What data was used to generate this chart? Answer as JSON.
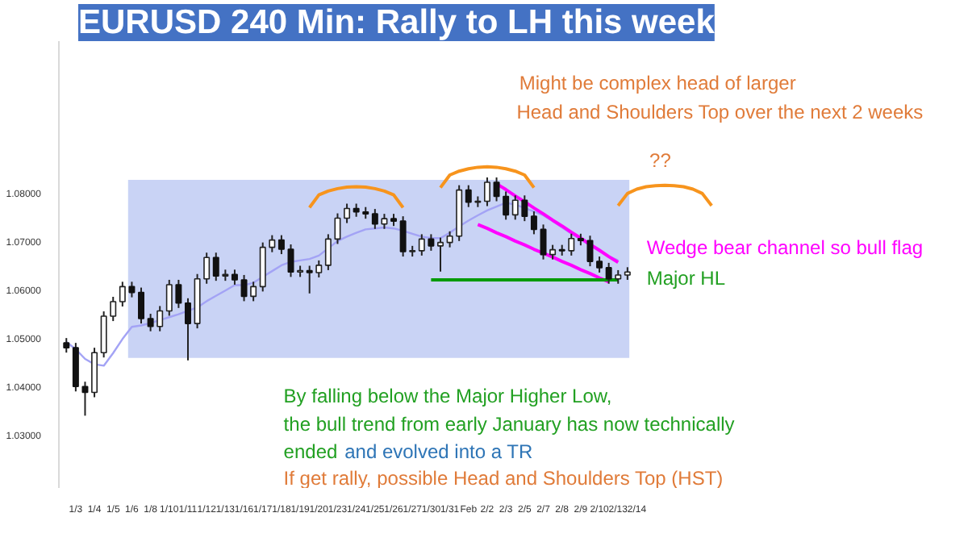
{
  "chart_data": {
    "type": "candlestick",
    "title": "EURUSD 240 Min: Rally to LH this week",
    "categories": [
      null,
      "1/3",
      null,
      "1/4",
      null,
      "1/5",
      null,
      "1/6",
      null,
      "1/8",
      null,
      "1/10",
      null,
      "1/11",
      null,
      "1/12",
      null,
      "1/13",
      null,
      "1/16",
      null,
      "1/17",
      null,
      "1/18",
      null,
      "1/19",
      null,
      "1/20",
      null,
      "1/23",
      null,
      "1/24",
      null,
      "1/25",
      null,
      "1/26",
      null,
      "1/27",
      null,
      "1/30",
      null,
      "1/31",
      null,
      "Feb",
      null,
      "2/2",
      null,
      "2/3",
      null,
      "2/5",
      null,
      "2/7",
      null,
      "2/8",
      null,
      "2/9",
      null,
      "2/10",
      null,
      "2/13",
      null,
      "2/14",
      null,
      null,
      null,
      null,
      null,
      null,
      null,
      null
    ],
    "ohlc": [
      [
        1.049,
        1.05,
        1.047,
        1.048
      ],
      [
        1.048,
        1.049,
        1.039,
        1.04
      ],
      [
        1.04,
        1.041,
        1.034,
        1.0388
      ],
      [
        1.0388,
        1.048,
        1.0378,
        1.047
      ],
      [
        1.047,
        1.0555,
        1.046,
        1.0545
      ],
      [
        1.0545,
        1.0585,
        1.0535,
        1.0575
      ],
      [
        1.0575,
        1.0616,
        1.0565,
        1.0606
      ],
      [
        1.0606,
        1.0616,
        1.0584,
        1.0594
      ],
      [
        1.0594,
        1.0604,
        1.053,
        1.054
      ],
      [
        1.054,
        1.055,
        1.0514,
        1.0524
      ],
      [
        1.0524,
        1.0566,
        1.0514,
        1.0556
      ],
      [
        1.0556,
        1.062,
        1.0546,
        1.061
      ],
      [
        1.061,
        1.062,
        1.0562,
        1.0572
      ],
      [
        1.0572,
        1.0582,
        1.0454,
        1.053
      ],
      [
        1.053,
        1.0632,
        1.052,
        1.0622
      ],
      [
        1.0622,
        1.0676,
        1.0612,
        1.0666
      ],
      [
        1.0666,
        1.0676,
        1.0618,
        1.0628
      ],
      [
        1.0628,
        1.0641,
        1.0618,
        1.0631
      ],
      [
        1.0631,
        1.0641,
        1.061,
        1.062
      ],
      [
        1.062,
        1.063,
        1.0576,
        1.0586
      ],
      [
        1.0586,
        1.0616,
        1.0576,
        1.0606
      ],
      [
        1.0606,
        1.0697,
        1.0596,
        1.0687
      ],
      [
        1.0687,
        1.0712,
        1.0677,
        1.0702
      ],
      [
        1.0702,
        1.0712,
        1.0673,
        1.0683
      ],
      [
        1.0683,
        1.0693,
        1.0626,
        1.0636
      ],
      [
        1.0636,
        1.0649,
        1.0626,
        1.0639
      ],
      [
        1.0639,
        1.0649,
        1.0592,
        1.0635
      ],
      [
        1.0635,
        1.066,
        1.0625,
        1.065
      ],
      [
        1.065,
        1.0714,
        1.064,
        1.0704
      ],
      [
        1.0704,
        1.0757,
        1.0694,
        1.0747
      ],
      [
        1.0747,
        1.0777,
        1.0737,
        1.0767
      ],
      [
        1.0767,
        1.0777,
        1.075,
        1.076
      ],
      [
        1.076,
        1.077,
        1.0746,
        1.0756
      ],
      [
        1.0756,
        1.0766,
        1.0725,
        1.0735
      ],
      [
        1.0735,
        1.0756,
        1.0725,
        1.0746
      ],
      [
        1.0746,
        1.0756,
        1.0731,
        1.0741
      ],
      [
        1.0741,
        1.0751,
        1.0668,
        1.0678
      ],
      [
        1.0678,
        1.069,
        1.0668,
        1.068
      ],
      [
        1.068,
        1.0714,
        1.067,
        1.0704
      ],
      [
        1.0704,
        1.0714,
        1.068,
        1.069
      ],
      [
        1.069,
        1.0707,
        1.0637,
        1.0697
      ],
      [
        1.0697,
        1.072,
        1.0687,
        1.071
      ],
      [
        1.071,
        1.0815,
        1.07,
        1.0805
      ],
      [
        1.0805,
        1.0815,
        1.077,
        1.078
      ],
      [
        1.078,
        1.0792,
        1.077,
        1.0782
      ],
      [
        1.0782,
        1.0831,
        1.0772,
        1.0821
      ],
      [
        1.0821,
        1.0831,
        1.0782,
        1.0792
      ],
      [
        1.0792,
        1.0802,
        1.0744,
        1.0754
      ],
      [
        1.0754,
        1.0794,
        1.0744,
        1.0784
      ],
      [
        1.0784,
        1.0794,
        1.0741,
        1.0751
      ],
      [
        1.0751,
        1.0761,
        1.0714,
        1.0724
      ],
      [
        1.0724,
        1.0734,
        1.0662,
        1.0672
      ],
      [
        1.0672,
        1.0692,
        1.0662,
        1.0682
      ],
      [
        1.0682,
        1.0692,
        1.067,
        1.068
      ],
      [
        1.068,
        1.0715,
        1.067,
        1.0705
      ],
      [
        1.0705,
        1.0715,
        1.0691,
        1.0701
      ],
      [
        1.0701,
        1.0711,
        1.0648,
        1.0658
      ],
      [
        1.0658,
        1.0668,
        1.0635,
        1.0645
      ],
      [
        1.0645,
        1.0655,
        1.0612,
        1.0622
      ],
      [
        1.0622,
        1.064,
        1.0612,
        1.063
      ],
      [
        1.063,
        1.0646,
        1.062,
        1.0636
      ],
      null,
      null,
      null,
      null,
      null,
      null,
      null,
      null,
      null
    ],
    "series": [
      {
        "type": "line",
        "color": "#a3a3f5",
        "values": [
          1.0492,
          1.0477,
          1.0457,
          1.0446,
          1.0443,
          1.0469,
          1.0498,
          1.0523,
          1.0526,
          1.0531,
          1.0537,
          1.0543,
          1.0549,
          1.0556,
          1.0563,
          1.0576,
          1.0587,
          1.0598,
          1.0609,
          1.0609,
          1.0614,
          1.0626,
          1.0638,
          1.065,
          1.0657,
          1.066,
          1.0663,
          1.067,
          1.0685,
          1.07,
          1.0709,
          1.0717,
          1.0724,
          1.0726,
          1.0728,
          1.0726,
          1.0721,
          1.0715,
          1.0709,
          1.0706,
          1.0706,
          1.0717,
          1.073,
          1.0742,
          1.0753,
          1.0763,
          1.0771,
          1.0779,
          1.0775,
          1.0768,
          1.0761,
          1.0753,
          1.0741,
          1.0728,
          1.0715,
          1.0703,
          1.0691,
          1.0679,
          1.0669,
          1.066,
          null,
          null,
          null,
          null,
          null,
          null,
          null,
          null,
          null,
          null
        ]
      },
      {
        "type": "line",
        "color": "#ff00ff",
        "values": [
          null,
          null,
          null,
          null,
          null,
          null,
          null,
          null,
          null,
          null,
          null,
          null,
          null,
          null,
          null,
          null,
          null,
          null,
          null,
          null,
          null,
          null,
          null,
          null,
          null,
          null,
          null,
          null,
          null,
          null,
          null,
          null,
          null,
          null,
          null,
          null,
          null,
          null,
          null,
          null,
          null,
          null,
          null,
          null,
          null,
          null,
          1.0818,
          1.0806,
          1.0793,
          1.0781,
          1.0768,
          1.0756,
          1.0743,
          1.0731,
          1.0718,
          1.0706,
          1.0693,
          1.0681,
          1.0668,
          1.0656,
          null,
          null,
          null,
          null,
          null,
          null,
          null,
          null,
          null,
          null
        ]
      },
      {
        "type": "line",
        "color": "#ff00ff",
        "values": [
          null,
          null,
          null,
          null,
          null,
          null,
          null,
          null,
          null,
          null,
          null,
          null,
          null,
          null,
          null,
          null,
          null,
          null,
          null,
          null,
          null,
          null,
          null,
          null,
          null,
          null,
          null,
          null,
          null,
          null,
          null,
          null,
          null,
          null,
          null,
          null,
          null,
          null,
          null,
          null,
          null,
          null,
          null,
          null,
          1.0734,
          1.0726,
          1.0717,
          1.0709,
          1.07,
          1.0692,
          1.0683,
          1.0675,
          1.0667,
          1.0658,
          1.065,
          1.0641,
          1.0633,
          1.0624,
          1.0616,
          null,
          null,
          null,
          null,
          null,
          null,
          null,
          null,
          null,
          null,
          null
        ]
      },
      {
        "type": "line",
        "color": "#009a00",
        "values": [
          null,
          null,
          null,
          null,
          null,
          null,
          null,
          null,
          null,
          null,
          null,
          null,
          null,
          null,
          null,
          null,
          null,
          null,
          null,
          null,
          null,
          null,
          null,
          null,
          null,
          null,
          null,
          null,
          null,
          null,
          null,
          null,
          null,
          null,
          null,
          null,
          null,
          null,
          null,
          1.062,
          1.062,
          1.062,
          1.062,
          1.062,
          1.062,
          1.062,
          1.062,
          1.062,
          1.062,
          1.062,
          1.062,
          1.062,
          1.062,
          1.062,
          1.062,
          1.062,
          1.062,
          1.062,
          1.062,
          1.062,
          null,
          null,
          null,
          null,
          null,
          null,
          null,
          null,
          null,
          null
        ]
      },
      {
        "type": "line",
        "color": "#f7941d",
        "values": [
          null,
          null,
          null,
          null,
          null,
          null,
          null,
          null,
          null,
          null,
          null,
          null,
          null,
          null,
          null,
          null,
          null,
          null,
          null,
          null,
          null,
          null,
          null,
          null,
          null,
          null,
          1.0769,
          1.0795,
          1.0803,
          1.0808,
          1.0811,
          1.0812,
          1.0811,
          1.0808,
          1.0803,
          1.0795,
          1.0769,
          null,
          null,
          null,
          null,
          null,
          null,
          null,
          null,
          null,
          null,
          null,
          null,
          null,
          null,
          null,
          null,
          null,
          null,
          null,
          null,
          null,
          null,
          null,
          null,
          null,
          null,
          null,
          null,
          null,
          null,
          null,
          null,
          null
        ]
      },
      {
        "type": "line",
        "color": "#f7941d",
        "values": [
          null,
          null,
          null,
          null,
          null,
          null,
          null,
          null,
          null,
          null,
          null,
          null,
          null,
          null,
          null,
          null,
          null,
          null,
          null,
          null,
          null,
          null,
          null,
          null,
          null,
          null,
          null,
          null,
          null,
          null,
          null,
          null,
          null,
          null,
          null,
          null,
          null,
          null,
          null,
          null,
          1.081,
          1.0836,
          1.0844,
          1.0849,
          1.0852,
          1.0853,
          1.0852,
          1.0849,
          1.0844,
          1.0836,
          1.081,
          null,
          null,
          null,
          null,
          null,
          null,
          null,
          null,
          null,
          null,
          null,
          null,
          null,
          null,
          null,
          null,
          null,
          null,
          null
        ]
      },
      {
        "type": "line",
        "color": "#f7941d",
        "values": [
          null,
          null,
          null,
          null,
          null,
          null,
          null,
          null,
          null,
          null,
          null,
          null,
          null,
          null,
          null,
          null,
          null,
          null,
          null,
          null,
          null,
          null,
          null,
          null,
          null,
          null,
          null,
          null,
          null,
          null,
          null,
          null,
          null,
          null,
          null,
          null,
          null,
          null,
          null,
          null,
          null,
          null,
          null,
          null,
          null,
          null,
          null,
          null,
          null,
          null,
          null,
          null,
          null,
          null,
          null,
          null,
          null,
          null,
          null,
          1.0773,
          1.0798,
          1.0807,
          1.0812,
          1.0814,
          1.0815,
          1.0814,
          1.0812,
          1.0807,
          1.0798,
          1.0773
        ]
      }
    ],
    "bands": [
      {
        "axis": "y",
        "from": 1.0459,
        "to": 1.0826,
        "color": "#c9d3f5"
      }
    ],
    "ylim": [
      1.0191,
      1.1112
    ],
    "yticks": [
      {
        "value": 1.03,
        "label": "1.03000"
      },
      {
        "value": 1.04,
        "label": "1.04000"
      },
      {
        "value": 1.05,
        "label": "1.05000"
      },
      {
        "value": 1.06,
        "label": "1.06000"
      },
      {
        "value": 1.07,
        "label": "1.07000"
      },
      {
        "value": 1.08,
        "label": "1.08000"
      }
    ],
    "annotations": [
      "Might be complex head of larger",
      "Head and Shoulders Top over the next 2 weeks",
      "??",
      "Wedge bear channel so bull flag",
      "Major HL",
      "By falling below the Major Higher Low,",
      "the bull trend from early January has now technically",
      "ended",
      "and evolved into a TR",
      "If get rally, possible Head and Shoulders Top (HST)"
    ],
    "grid": false
  }
}
